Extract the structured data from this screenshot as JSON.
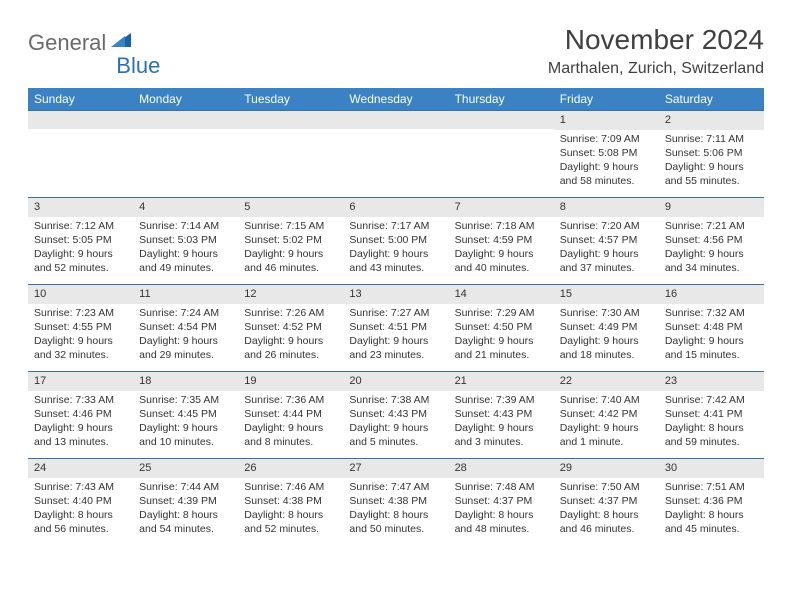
{
  "logo": {
    "main": "General",
    "sub": "Blue"
  },
  "title": "November 2024",
  "location": "Marthalen, Zurich, Switzerland",
  "colors": {
    "header_bg": "#3b82c4",
    "header_text": "#ffffff",
    "row_border": "#3b6fa0",
    "daynum_bg": "#e8e8e8",
    "logo_gray": "#6a6a6a",
    "logo_blue": "#2a70b8",
    "triangle_blue": "#1f5fa8"
  },
  "day_headers": [
    "Sunday",
    "Monday",
    "Tuesday",
    "Wednesday",
    "Thursday",
    "Friday",
    "Saturday"
  ],
  "weeks": [
    [
      {
        "n": "",
        "sr": "",
        "ss": "",
        "dl": ""
      },
      {
        "n": "",
        "sr": "",
        "ss": "",
        "dl": ""
      },
      {
        "n": "",
        "sr": "",
        "ss": "",
        "dl": ""
      },
      {
        "n": "",
        "sr": "",
        "ss": "",
        "dl": ""
      },
      {
        "n": "",
        "sr": "",
        "ss": "",
        "dl": ""
      },
      {
        "n": "1",
        "sr": "Sunrise: 7:09 AM",
        "ss": "Sunset: 5:08 PM",
        "dl": "Daylight: 9 hours and 58 minutes."
      },
      {
        "n": "2",
        "sr": "Sunrise: 7:11 AM",
        "ss": "Sunset: 5:06 PM",
        "dl": "Daylight: 9 hours and 55 minutes."
      }
    ],
    [
      {
        "n": "3",
        "sr": "Sunrise: 7:12 AM",
        "ss": "Sunset: 5:05 PM",
        "dl": "Daylight: 9 hours and 52 minutes."
      },
      {
        "n": "4",
        "sr": "Sunrise: 7:14 AM",
        "ss": "Sunset: 5:03 PM",
        "dl": "Daylight: 9 hours and 49 minutes."
      },
      {
        "n": "5",
        "sr": "Sunrise: 7:15 AM",
        "ss": "Sunset: 5:02 PM",
        "dl": "Daylight: 9 hours and 46 minutes."
      },
      {
        "n": "6",
        "sr": "Sunrise: 7:17 AM",
        "ss": "Sunset: 5:00 PM",
        "dl": "Daylight: 9 hours and 43 minutes."
      },
      {
        "n": "7",
        "sr": "Sunrise: 7:18 AM",
        "ss": "Sunset: 4:59 PM",
        "dl": "Daylight: 9 hours and 40 minutes."
      },
      {
        "n": "8",
        "sr": "Sunrise: 7:20 AM",
        "ss": "Sunset: 4:57 PM",
        "dl": "Daylight: 9 hours and 37 minutes."
      },
      {
        "n": "9",
        "sr": "Sunrise: 7:21 AM",
        "ss": "Sunset: 4:56 PM",
        "dl": "Daylight: 9 hours and 34 minutes."
      }
    ],
    [
      {
        "n": "10",
        "sr": "Sunrise: 7:23 AM",
        "ss": "Sunset: 4:55 PM",
        "dl": "Daylight: 9 hours and 32 minutes."
      },
      {
        "n": "11",
        "sr": "Sunrise: 7:24 AM",
        "ss": "Sunset: 4:54 PM",
        "dl": "Daylight: 9 hours and 29 minutes."
      },
      {
        "n": "12",
        "sr": "Sunrise: 7:26 AM",
        "ss": "Sunset: 4:52 PM",
        "dl": "Daylight: 9 hours and 26 minutes."
      },
      {
        "n": "13",
        "sr": "Sunrise: 7:27 AM",
        "ss": "Sunset: 4:51 PM",
        "dl": "Daylight: 9 hours and 23 minutes."
      },
      {
        "n": "14",
        "sr": "Sunrise: 7:29 AM",
        "ss": "Sunset: 4:50 PM",
        "dl": "Daylight: 9 hours and 21 minutes."
      },
      {
        "n": "15",
        "sr": "Sunrise: 7:30 AM",
        "ss": "Sunset: 4:49 PM",
        "dl": "Daylight: 9 hours and 18 minutes."
      },
      {
        "n": "16",
        "sr": "Sunrise: 7:32 AM",
        "ss": "Sunset: 4:48 PM",
        "dl": "Daylight: 9 hours and 15 minutes."
      }
    ],
    [
      {
        "n": "17",
        "sr": "Sunrise: 7:33 AM",
        "ss": "Sunset: 4:46 PM",
        "dl": "Daylight: 9 hours and 13 minutes."
      },
      {
        "n": "18",
        "sr": "Sunrise: 7:35 AM",
        "ss": "Sunset: 4:45 PM",
        "dl": "Daylight: 9 hours and 10 minutes."
      },
      {
        "n": "19",
        "sr": "Sunrise: 7:36 AM",
        "ss": "Sunset: 4:44 PM",
        "dl": "Daylight: 9 hours and 8 minutes."
      },
      {
        "n": "20",
        "sr": "Sunrise: 7:38 AM",
        "ss": "Sunset: 4:43 PM",
        "dl": "Daylight: 9 hours and 5 minutes."
      },
      {
        "n": "21",
        "sr": "Sunrise: 7:39 AM",
        "ss": "Sunset: 4:43 PM",
        "dl": "Daylight: 9 hours and 3 minutes."
      },
      {
        "n": "22",
        "sr": "Sunrise: 7:40 AM",
        "ss": "Sunset: 4:42 PM",
        "dl": "Daylight: 9 hours and 1 minute."
      },
      {
        "n": "23",
        "sr": "Sunrise: 7:42 AM",
        "ss": "Sunset: 4:41 PM",
        "dl": "Daylight: 8 hours and 59 minutes."
      }
    ],
    [
      {
        "n": "24",
        "sr": "Sunrise: 7:43 AM",
        "ss": "Sunset: 4:40 PM",
        "dl": "Daylight: 8 hours and 56 minutes."
      },
      {
        "n": "25",
        "sr": "Sunrise: 7:44 AM",
        "ss": "Sunset: 4:39 PM",
        "dl": "Daylight: 8 hours and 54 minutes."
      },
      {
        "n": "26",
        "sr": "Sunrise: 7:46 AM",
        "ss": "Sunset: 4:38 PM",
        "dl": "Daylight: 8 hours and 52 minutes."
      },
      {
        "n": "27",
        "sr": "Sunrise: 7:47 AM",
        "ss": "Sunset: 4:38 PM",
        "dl": "Daylight: 8 hours and 50 minutes."
      },
      {
        "n": "28",
        "sr": "Sunrise: 7:48 AM",
        "ss": "Sunset: 4:37 PM",
        "dl": "Daylight: 8 hours and 48 minutes."
      },
      {
        "n": "29",
        "sr": "Sunrise: 7:50 AM",
        "ss": "Sunset: 4:37 PM",
        "dl": "Daylight: 8 hours and 46 minutes."
      },
      {
        "n": "30",
        "sr": "Sunrise: 7:51 AM",
        "ss": "Sunset: 4:36 PM",
        "dl": "Daylight: 8 hours and 45 minutes."
      }
    ]
  ]
}
